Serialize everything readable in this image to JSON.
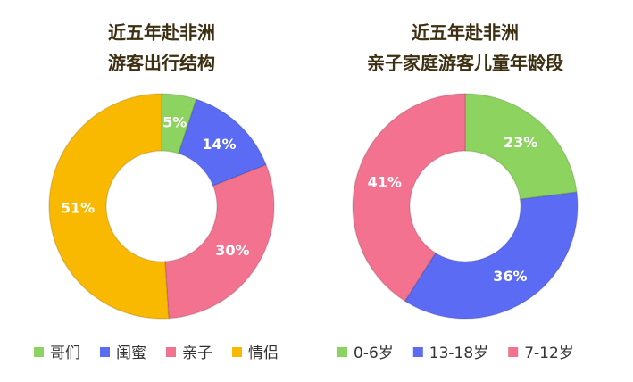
{
  "chart_data": [
    {
      "type": "donut",
      "title": [
        "近五年赴非洲",
        "游客出行结构"
      ],
      "categories": [
        "哥们",
        "闺蜜",
        "亲子",
        "情侣"
      ],
      "values": [
        5,
        14,
        30,
        51
      ],
      "value_labels": [
        "5%",
        "14%",
        "30%",
        "51%"
      ],
      "colors": [
        "#8dd35f",
        "#5b6bf4",
        "#f2728f",
        "#f8b900"
      ]
    },
    {
      "type": "donut",
      "title": [
        "近五年赴非洲",
        "亲子家庭游客儿童年龄段"
      ],
      "categories": [
        "0-6岁",
        "13-18岁",
        "7-12岁"
      ],
      "values": [
        23,
        36,
        41
      ],
      "value_labels": [
        "23%",
        "36%",
        "41%"
      ],
      "colors": [
        "#8dd35f",
        "#5b6bf4",
        "#f2728f"
      ]
    }
  ]
}
